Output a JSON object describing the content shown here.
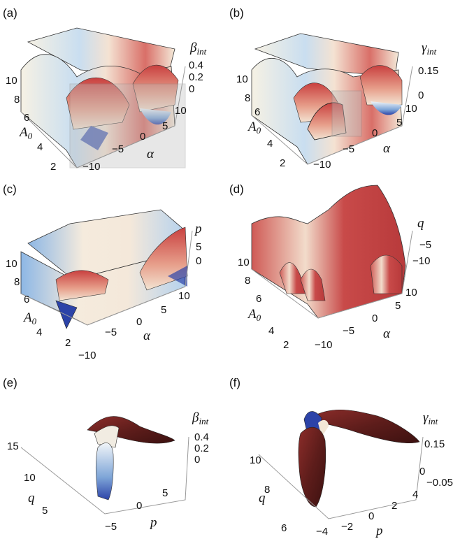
{
  "panels": [
    {
      "label": "(a)",
      "z_label": "β",
      "z_sub": "int",
      "z_ticks": [
        "0.4",
        "0.2",
        "0"
      ],
      "y_label": "A",
      "y_sub": "0",
      "y_ticks": [
        "10",
        "8",
        "6",
        "4",
        "2"
      ],
      "x_label": "α",
      "x_ticks": [
        "10",
        "5",
        "0",
        "−5",
        "−10"
      ]
    },
    {
      "label": "(b)",
      "z_label": "γ",
      "z_sub": "int",
      "z_ticks": [
        "0.15",
        "0"
      ],
      "y_label": "A",
      "y_sub": "0",
      "y_ticks": [
        "10",
        "8",
        "6",
        "4",
        "2"
      ],
      "x_label": "α",
      "x_ticks": [
        "10",
        "5",
        "0",
        "−5",
        "−10"
      ]
    },
    {
      "label": "(c)",
      "z_label": "p",
      "z_ticks": [
        "5",
        "0"
      ],
      "y_label": "A",
      "y_sub": "0",
      "y_ticks": [
        "10",
        "8",
        "6",
        "4",
        "2"
      ],
      "x_label": "α",
      "x_ticks": [
        "10",
        "5",
        "0",
        "−5",
        "−10"
      ]
    },
    {
      "label": "(d)",
      "z_label": "q",
      "z_ticks": [
        "−5",
        "−10"
      ],
      "y_label": "A",
      "y_sub": "0",
      "y_ticks": [
        "10",
        "8",
        "6",
        "4",
        "2"
      ],
      "x_label": "α",
      "x_ticks": [
        "10",
        "5",
        "0",
        "−5",
        "−10"
      ]
    },
    {
      "label": "(e)",
      "z_label": "β",
      "z_sub": "int",
      "z_ticks": [
        "0.4",
        "0.2",
        "0"
      ],
      "y_label": "q",
      "y_ticks": [
        "15",
        "10",
        "5"
      ],
      "x_label": "p",
      "x_ticks": [
        "5",
        "0",
        "−5"
      ]
    },
    {
      "label": "(f)",
      "z_label": "γ",
      "z_sub": "int",
      "z_ticks": [
        "0.15",
        "0",
        "−0.05"
      ],
      "y_label": "q",
      "y_ticks": [
        "10",
        "8",
        "6"
      ],
      "x_label": "p",
      "x_ticks": [
        "4",
        "2",
        "0",
        "−2",
        "−4"
      ]
    }
  ]
}
